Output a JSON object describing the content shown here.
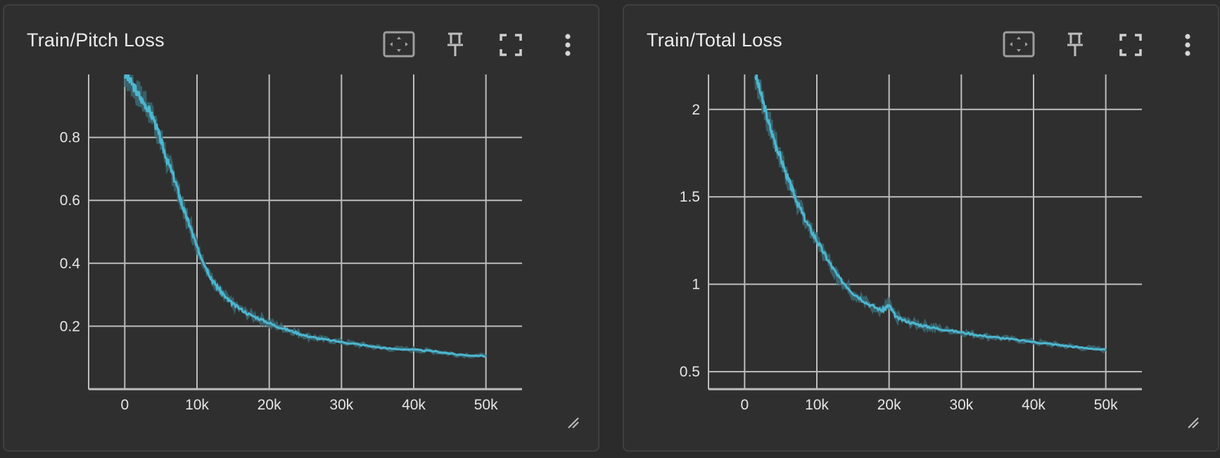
{
  "colors": {
    "background": "#2b2b2b",
    "card": "#2f2f2f",
    "grid": "#bdbdbd",
    "line": "#4db6d0",
    "line_raw": "#3b6a73"
  },
  "icons": [
    "fit-domain-icon",
    "pin-icon",
    "fullscreen-icon",
    "more-vert-icon",
    "resize-handle-icon"
  ],
  "cards": [
    {
      "title": "Train/Pitch Loss"
    },
    {
      "title": "Train/Total Loss"
    }
  ],
  "chart_data": [
    {
      "type": "line",
      "title": "Train/Pitch Loss",
      "xlabel": "",
      "ylabel": "",
      "xlim": [
        -5000,
        55000
      ],
      "ylim": [
        0,
        1.0
      ],
      "xticks": [
        0,
        10000,
        20000,
        30000,
        40000,
        50000
      ],
      "xtick_labels": [
        "0",
        "10k",
        "20k",
        "30k",
        "40k",
        "50k"
      ],
      "yticks": [
        0.2,
        0.4,
        0.6,
        0.8
      ],
      "ytick_labels": [
        "0.2",
        "0.4",
        "0.6",
        "0.8"
      ],
      "grid": true,
      "legend": "none",
      "series": [
        {
          "x": [
            0,
            1000,
            2000,
            3000,
            4000,
            5000,
            6000,
            7000,
            8000,
            9000,
            10000,
            11000,
            12000,
            13000,
            14000,
            15000,
            17000,
            19000,
            21000,
            23000,
            25000,
            27000,
            30000,
            33000,
            36000,
            40000,
            43000,
            46000,
            50000
          ],
          "y": [
            1.0,
            0.97,
            0.93,
            0.9,
            0.86,
            0.79,
            0.72,
            0.66,
            0.58,
            0.52,
            0.45,
            0.4,
            0.35,
            0.32,
            0.29,
            0.27,
            0.24,
            0.22,
            0.2,
            0.185,
            0.17,
            0.16,
            0.15,
            0.14,
            0.13,
            0.125,
            0.12,
            0.11,
            0.105
          ]
        }
      ]
    },
    {
      "type": "line",
      "title": "Train/Total Loss",
      "xlabel": "",
      "ylabel": "",
      "xlim": [
        -5000,
        55000
      ],
      "ylim": [
        0.4,
        2.2
      ],
      "xticks": [
        0,
        10000,
        20000,
        30000,
        40000,
        50000
      ],
      "xtick_labels": [
        "0",
        "10k",
        "20k",
        "30k",
        "40k",
        "50k"
      ],
      "yticks": [
        0.5,
        1,
        1.5,
        2
      ],
      "ytick_labels": [
        "0.5",
        "1",
        "1.5",
        "2"
      ],
      "grid": true,
      "legend": "none",
      "series": [
        {
          "x": [
            1500,
            2500,
            3500,
            4500,
            5500,
            6500,
            7500,
            8500,
            10000,
            11500,
            13000,
            15000,
            17000,
            19000,
            20000,
            21000,
            23000,
            25000,
            27000,
            30000,
            33000,
            36000,
            40000,
            43000,
            46000,
            50000
          ],
          "y": [
            2.2,
            2.05,
            1.9,
            1.78,
            1.66,
            1.55,
            1.45,
            1.36,
            1.25,
            1.14,
            1.04,
            0.95,
            0.89,
            0.85,
            0.88,
            0.81,
            0.78,
            0.76,
            0.745,
            0.725,
            0.705,
            0.69,
            0.67,
            0.655,
            0.64,
            0.625
          ]
        }
      ]
    }
  ]
}
